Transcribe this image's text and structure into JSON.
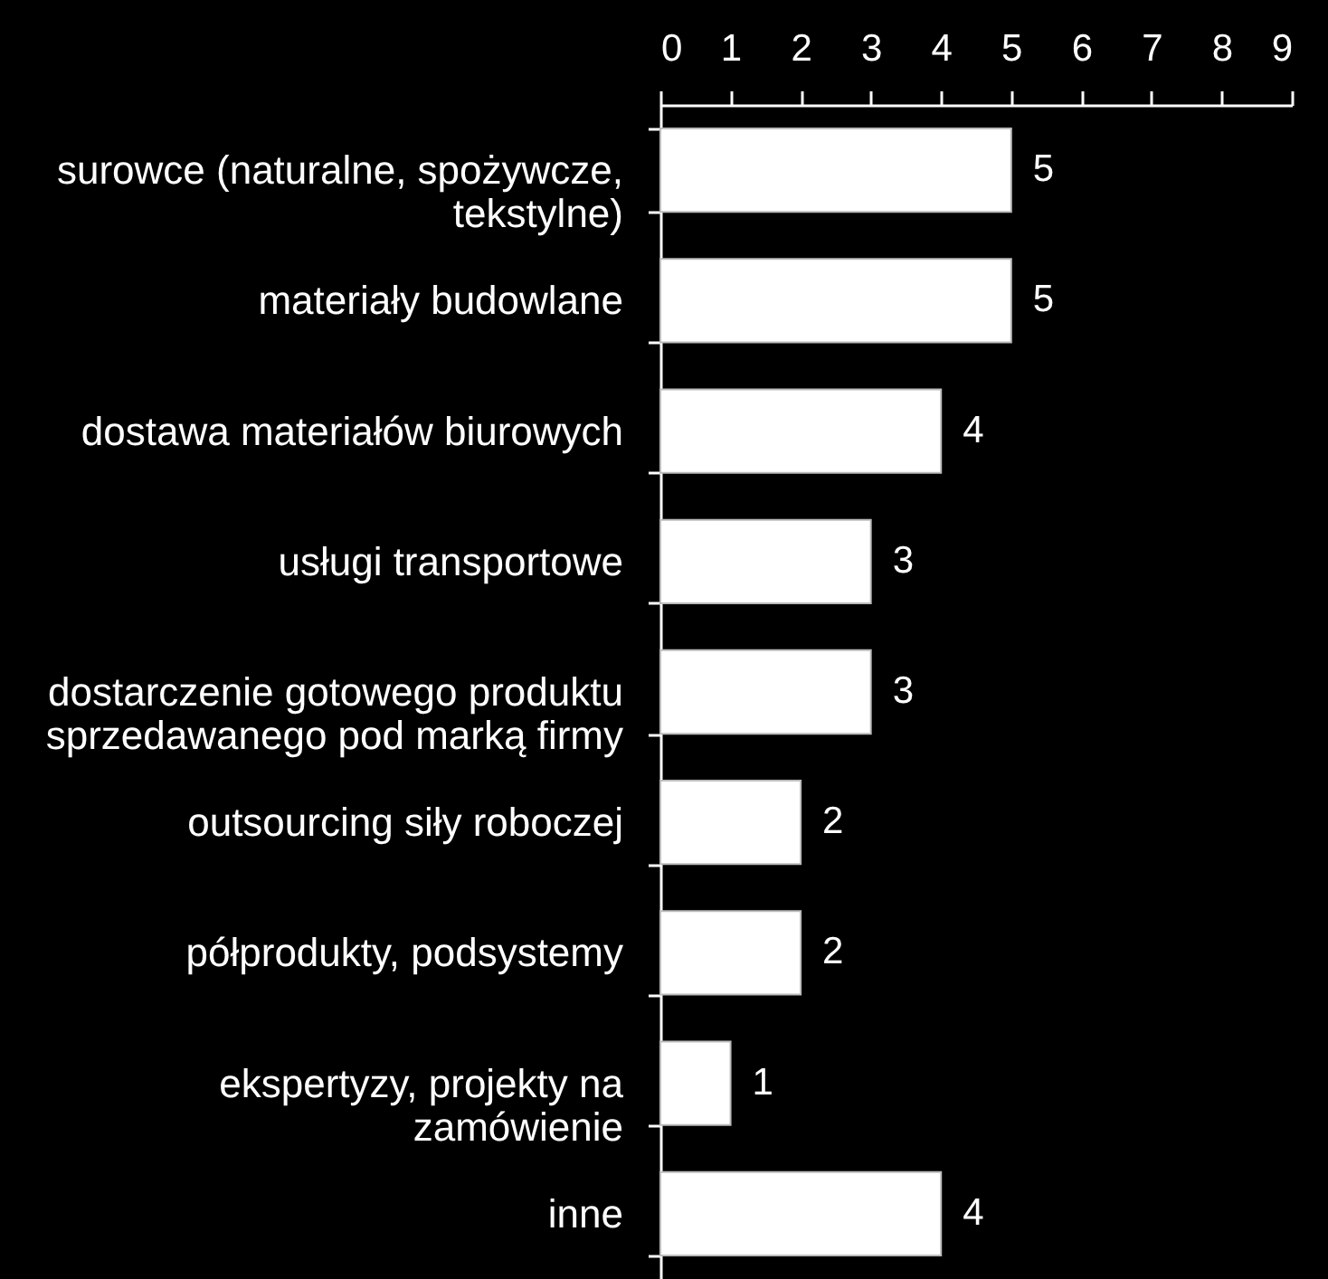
{
  "chart_data": {
    "type": "bar",
    "orientation": "horizontal",
    "categories": [
      "surowce (naturalne, spożywcze,\ntekstylne)",
      "materiały budowlane",
      "dostawa materiałów biurowych",
      "usługi transportowe",
      "dostarczenie gotowego produktu\nsprzedawanego pod marką firmy",
      "outsourcing siły roboczej",
      "półprodukty, podsystemy",
      "ekspertyzy, projekty na\nzamówienie",
      "inne"
    ],
    "values": [
      5,
      5,
      4,
      3,
      3,
      2,
      2,
      1,
      4
    ],
    "color": "#ffffff",
    "xlim": [
      0,
      9
    ],
    "xticks": [
      0,
      1,
      2,
      3,
      4,
      5,
      6,
      7,
      8,
      9
    ],
    "data_labels": true
  }
}
